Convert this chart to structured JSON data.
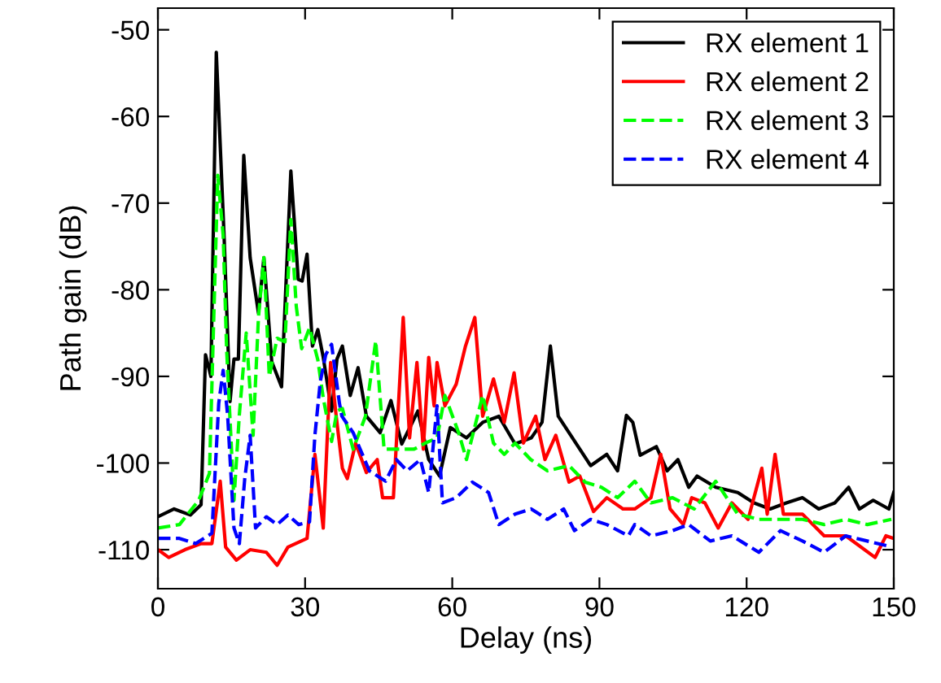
{
  "chart_data": {
    "type": "line",
    "xlabel": "Delay (ns)",
    "ylabel": "Path gain (dB)",
    "xlim": [
      0,
      150
    ],
    "ylim": [
      -114.5,
      -47.5
    ],
    "xticks": [
      0,
      30,
      60,
      90,
      120,
      150
    ],
    "yticks": [
      -110,
      -100,
      -90,
      -80,
      -70,
      -60,
      -50
    ],
    "grid": false,
    "legend": "top right",
    "series": [
      {
        "name": "RX element 1",
        "color": "#000000",
        "line_style": "solid",
        "x": [
          0,
          3.3,
          6.6,
          8.8,
          9.7,
          10.8,
          11.9,
          13.5,
          14.7,
          15.5,
          16.4,
          17.5,
          18.8,
          20.5,
          21.6,
          23.2,
          25.2,
          27.1,
          28.6,
          29.4,
          30.4,
          31.5,
          32.6,
          33.7,
          35.4,
          36.5,
          37.6,
          39.2,
          40.8,
          42.5,
          45.3,
          47.5,
          49.7,
          53,
          55.2,
          57.4,
          59.6,
          62.9,
          66.2,
          69.5,
          72.8,
          76.1,
          78.3,
          80,
          81.6,
          83.8,
          86,
          88.2,
          91.5,
          93.7,
          95.5,
          96.8,
          98.3,
          101.6,
          103.8,
          106,
          108.2,
          109.9,
          113.7,
          118.2,
          121.5,
          124.8,
          128.1,
          131.4,
          134.7,
          138,
          140.8,
          143,
          145.8,
          149,
          150
        ],
        "values": [
          -106.2,
          -105.3,
          -106,
          -104.8,
          -87.5,
          -90,
          -52.6,
          -74,
          -92.9,
          -88,
          -88,
          -64.5,
          -76.3,
          -82.7,
          -76.3,
          -88.3,
          -91.2,
          -66.3,
          -78.8,
          -79,
          -75.9,
          -86.5,
          -84.6,
          -87.8,
          -94,
          -88,
          -86.5,
          -92.2,
          -89,
          -94.6,
          -96.5,
          -92.8,
          -97.8,
          -94,
          -99.6,
          -101.5,
          -95.9,
          -97.1,
          -95.3,
          -94.6,
          -97.8,
          -97.1,
          -95.3,
          -86.5,
          -94.6,
          -96.5,
          -98.4,
          -100.3,
          -99,
          -100.9,
          -94.5,
          -95.3,
          -99.1,
          -98.1,
          -100.9,
          -99.6,
          -102.8,
          -101.5,
          -102.8,
          -103.4,
          -104.6,
          -105.3,
          -104.6,
          -104,
          -105.3,
          -104.6,
          -102.8,
          -105.3,
          -104.3,
          -105.3,
          -103.4
        ]
      },
      {
        "name": "RX element 2",
        "color": "#ff0000",
        "line_style": "solid",
        "x": [
          0,
          2.2,
          5.5,
          8.8,
          11,
          12.7,
          13.8,
          16,
          18.8,
          22.1,
          24.3,
          26.5,
          30.4,
          32,
          33.7,
          35.2,
          36.3,
          37.6,
          38.6,
          40.3,
          42.5,
          44.7,
          45.8,
          48,
          50,
          51.3,
          52.8,
          54.1,
          55.2,
          56.3,
          56.9,
          58.5,
          60.8,
          62.7,
          64.6,
          66.2,
          68.4,
          70.6,
          72.6,
          74.5,
          77,
          78.9,
          81.1,
          83.8,
          86,
          88.8,
          91.5,
          94.8,
          97.2,
          100.5,
          102.5,
          104.4,
          107.1,
          108.8,
          111.5,
          114.2,
          117,
          120.3,
          123.1,
          124.2,
          125.8,
          127.5,
          131.4,
          135.8,
          140.2,
          146.2,
          148.4,
          150
        ],
        "values": [
          -110,
          -110.9,
          -110,
          -109.3,
          -109.3,
          -102.1,
          -109.7,
          -111.2,
          -110,
          -110.3,
          -111.8,
          -109.7,
          -108.7,
          -99,
          -107.5,
          -88.4,
          -94.4,
          -100.6,
          -101.8,
          -97.7,
          -101.1,
          -99.6,
          -104,
          -104,
          -83.2,
          -97.1,
          -88.4,
          -98.4,
          -87.8,
          -93.4,
          -88.4,
          -93.4,
          -90.9,
          -86.5,
          -83.2,
          -94.6,
          -90.3,
          -95.3,
          -89.6,
          -97.7,
          -94.6,
          -99.6,
          -96.8,
          -102.2,
          -101.5,
          -105.6,
          -104,
          -105.3,
          -105.3,
          -104,
          -99,
          -105.3,
          -107.1,
          -104,
          -104.6,
          -107.5,
          -104.6,
          -106.5,
          -100.6,
          -105.9,
          -99,
          -105.9,
          -105.9,
          -108.4,
          -108.4,
          -110.9,
          -108.4,
          -108.7
        ]
      },
      {
        "name": "RX element 3",
        "color": "#00ff00",
        "line_style": "dashed",
        "x": [
          0,
          4.4,
          8.3,
          10.5,
          12.2,
          13.3,
          14,
          15.5,
          16.6,
          18,
          19.4,
          20.5,
          21.6,
          22.7,
          24.3,
          25.9,
          27.1,
          28.2,
          29.3,
          30.9,
          32.6,
          33.7,
          35.4,
          36.5,
          37.6,
          39.8,
          42.3,
          44.4,
          46.1,
          48.9,
          52.2,
          54.5,
          56.9,
          58.5,
          61.3,
          62.9,
          66.2,
          68.4,
          70.6,
          72.8,
          76,
          79.4,
          83.8,
          87.1,
          90.4,
          93.7,
          97.2,
          100.5,
          104.9,
          109.3,
          113.7,
          118.2,
          122.5,
          127,
          131.4,
          135.8,
          140.2,
          144.6,
          149.5
        ],
        "values": [
          -107.5,
          -107.1,
          -104.3,
          -101.2,
          -66.8,
          -73.7,
          -86.8,
          -104.3,
          -94.4,
          -85,
          -96.8,
          -83.1,
          -76.3,
          -90,
          -85.6,
          -86,
          -71.9,
          -81.9,
          -86.8,
          -84.4,
          -88.1,
          -92.5,
          -97.5,
          -94,
          -93.7,
          -98.4,
          -94.6,
          -85.9,
          -98.4,
          -98.4,
          -98.4,
          -97.7,
          -97.1,
          -92.2,
          -96.5,
          -99.6,
          -92.2,
          -97.7,
          -99,
          -97.7,
          -99.6,
          -100.9,
          -100.3,
          -102.2,
          -102.8,
          -104,
          -102.1,
          -104.6,
          -104,
          -105.3,
          -102.1,
          -105.9,
          -106.5,
          -106.5,
          -106.5,
          -107.1,
          -106.5,
          -107.1,
          -106.5
        ]
      },
      {
        "name": "RX element 4",
        "color": "#0000ff",
        "line_style": "dashed",
        "x": [
          0,
          4.4,
          7.7,
          11,
          12.4,
          13.3,
          14.2,
          15.5,
          16.6,
          17.7,
          18.8,
          19.9,
          22.1,
          24.3,
          26.5,
          28.7,
          30.9,
          32,
          33.1,
          34.2,
          35.4,
          37,
          37.5,
          39.8,
          43.1,
          46.4,
          48.6,
          50.8,
          53.5,
          55.2,
          56.9,
          58,
          60.8,
          64.1,
          67.4,
          69.5,
          72.8,
          76.1,
          79.4,
          82.7,
          84.9,
          88.2,
          91.5,
          95.9,
          97.2,
          100.5,
          104.9,
          108.2,
          112.6,
          117,
          122.5,
          126.9,
          131.4,
          135.8,
          140.2,
          144.6,
          149
        ],
        "values": [
          -108.7,
          -108.7,
          -109.3,
          -108.1,
          -93.1,
          -89.3,
          -94.4,
          -107.5,
          -109.3,
          -101.8,
          -96.8,
          -107.5,
          -106.2,
          -107.1,
          -106,
          -107.1,
          -106.8,
          -96.8,
          -90.6,
          -87.5,
          -86.3,
          -93.1,
          -94.6,
          -96.5,
          -100.9,
          -102.1,
          -99.6,
          -100.9,
          -99.6,
          -103.4,
          -93.4,
          -104.6,
          -104,
          -102.2,
          -103.4,
          -107.1,
          -105.9,
          -105.3,
          -106.5,
          -105.3,
          -107.8,
          -106.5,
          -107.1,
          -108.4,
          -107.1,
          -108.4,
          -107.8,
          -107.1,
          -109,
          -108.4,
          -110.3,
          -107.8,
          -109,
          -110.3,
          -108.4,
          -109,
          -109.6
        ]
      }
    ]
  }
}
